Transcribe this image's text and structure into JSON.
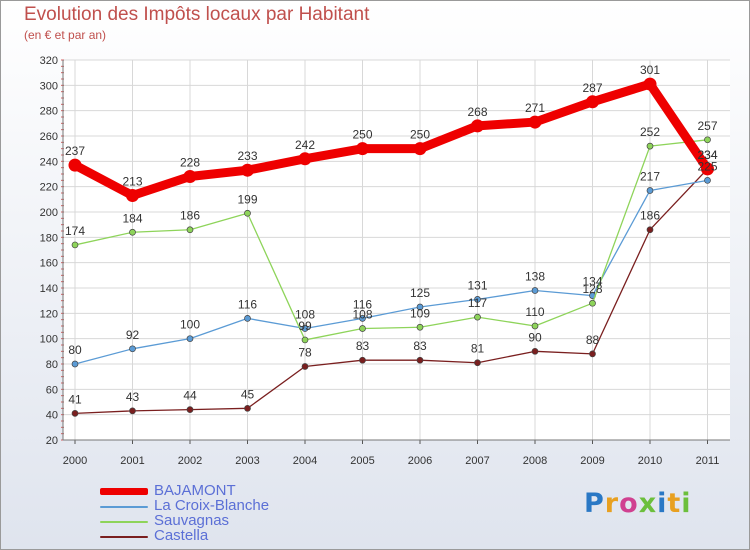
{
  "title": "Evolution des Impôts locaux par Habitant",
  "subtitle": "(en € et par an)",
  "logo_text": "Proxiti",
  "chart_data": {
    "type": "line",
    "title": "Evolution des Impôts locaux par Habitant",
    "subtitle": "(en € et par an)",
    "x": [
      "2000",
      "2001",
      "2002",
      "2003",
      "2004",
      "2005",
      "2006",
      "2007",
      "2008",
      "2009",
      "2010",
      "2011"
    ],
    "ylim": [
      20,
      320
    ],
    "yticks": [
      20,
      40,
      60,
      80,
      100,
      120,
      140,
      160,
      180,
      200,
      220,
      240,
      260,
      280,
      300,
      320
    ],
    "grid": true,
    "legend_position": "bottom-left",
    "series": [
      {
        "name": "BAJAMONT",
        "color": "#ee0000",
        "values": [
          237,
          213,
          228,
          233,
          242,
          250,
          250,
          268,
          271,
          287,
          301,
          234
        ],
        "labels": [
          "237",
          "213",
          "228",
          "233",
          "242",
          "250",
          "250",
          "268",
          "271",
          "287",
          "301",
          "234"
        ]
      },
      {
        "name": "La Croix-Blanche",
        "color": "#5b9bd5",
        "values": [
          80,
          92,
          100,
          116,
          108,
          116,
          125,
          131,
          138,
          134,
          217,
          225
        ],
        "labels": [
          "80",
          "92",
          "100",
          "116",
          "108",
          "116",
          "125",
          "131",
          "138",
          "134",
          "217",
          "225"
        ]
      },
      {
        "name": "Sauvagnas",
        "color": "#8ed45a",
        "values": [
          174,
          184,
          186,
          199,
          99,
          108,
          109,
          117,
          110,
          128,
          252,
          257
        ],
        "labels": [
          "174",
          "184",
          "186",
          "199",
          "99",
          "108",
          "109",
          "117",
          "110",
          "128",
          "252",
          "257"
        ]
      },
      {
        "name": "Castella",
        "color": "#7a1f1f",
        "values": [
          41,
          43,
          44,
          45,
          78,
          83,
          83,
          81,
          90,
          88,
          186,
          234
        ],
        "labels": [
          "41",
          "43",
          "44",
          "45",
          "78",
          "83",
          "83",
          "81",
          "90",
          "88",
          "186",
          "234"
        ]
      }
    ]
  }
}
